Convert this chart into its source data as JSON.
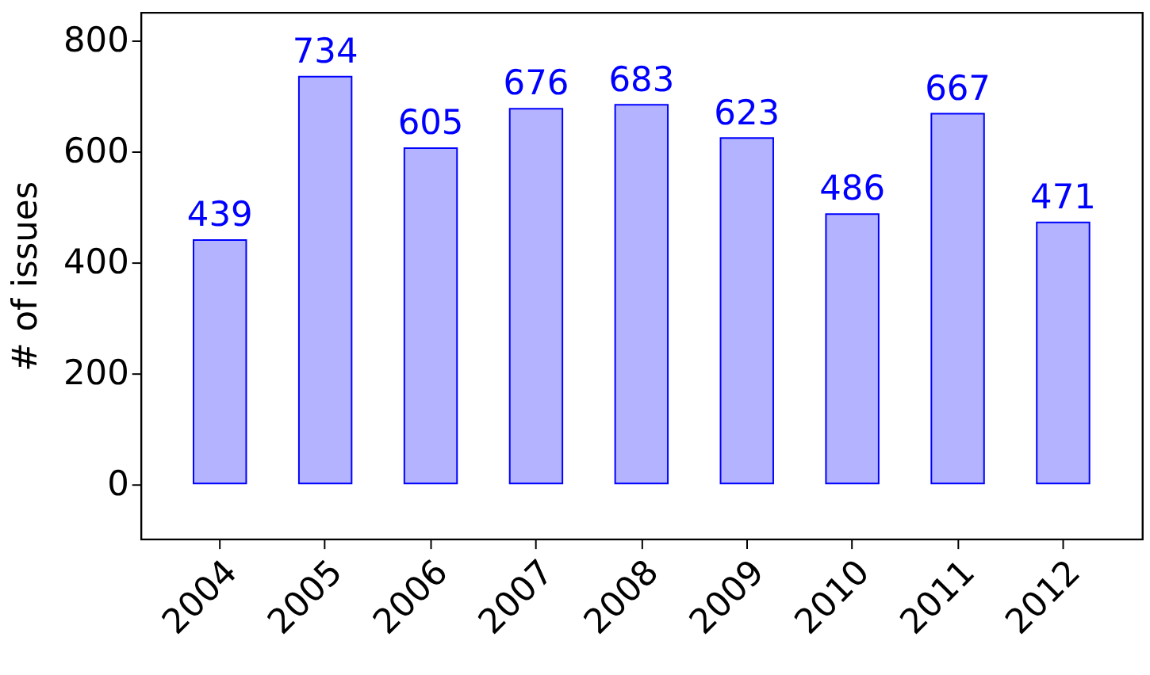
{
  "chart_data": {
    "type": "bar",
    "ylabel": "# of issues",
    "categories": [
      "2004",
      "2005",
      "2006",
      "2007",
      "2008",
      "2009",
      "2010",
      "2011",
      "2012"
    ],
    "values": [
      439,
      734,
      605,
      676,
      683,
      623,
      486,
      667,
      471
    ],
    "color": "#b3b3ff",
    "ylim": [
      -100,
      850
    ],
    "yticks": [
      0,
      200,
      400,
      600,
      800
    ],
    "data_labels": true
  }
}
